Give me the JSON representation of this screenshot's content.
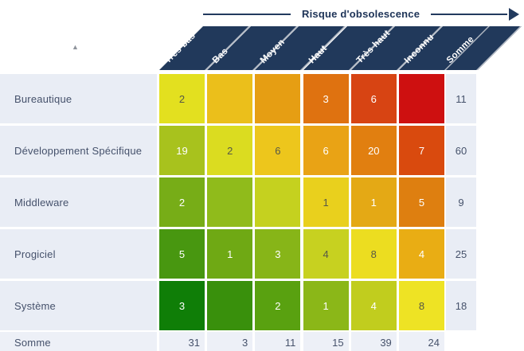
{
  "header": {
    "title": "Risque d'obsolescence"
  },
  "icons": {
    "sort_ascending": "▲",
    "arrow_right": "arrowhead-right"
  },
  "colors": {
    "header_navy": "#21395b",
    "title_navy": "#1d3357",
    "panel_lavender": "#e9edf5",
    "totals_row_bg": "#edf0f7",
    "label_text": "#45516b",
    "cell_dark_text": "#565847",
    "cell_light_text": "#ffffff"
  },
  "chart_data": {
    "type": "heatmap",
    "title": "Risque d'obsolescence",
    "columns": [
      "Très bas",
      "Bas",
      "Moyen",
      "Haut",
      "Très haut",
      "Inconnu"
    ],
    "somme_column_label": "Somme",
    "rows": [
      {
        "label": "Bureautique",
        "somme": "11",
        "cells": [
          {
            "value": "2",
            "bg": "#e3e01f",
            "fg": "#565847"
          },
          {
            "value": "",
            "bg": "#ebbf1b",
            "fg": "#565847"
          },
          {
            "value": "",
            "bg": "#e69e13",
            "fg": "#ffffff"
          },
          {
            "value": "3",
            "bg": "#df7210",
            "fg": "#ffffff"
          },
          {
            "value": "6",
            "bg": "#d74413",
            "fg": "#ffffff"
          },
          {
            "value": "",
            "bg": "#ce1010",
            "fg": "#ffffff"
          }
        ]
      },
      {
        "label": "Développement Spécifique",
        "somme": "60",
        "cells": [
          {
            "value": "19",
            "bg": "#a8c21d",
            "fg": "#ffffff"
          },
          {
            "value": "2",
            "bg": "#dbdc20",
            "fg": "#565847"
          },
          {
            "value": "6",
            "bg": "#edc61c",
            "fg": "#565847"
          },
          {
            "value": "6",
            "bg": "#e9a315",
            "fg": "#ffffff"
          },
          {
            "value": "20",
            "bg": "#e17f10",
            "fg": "#ffffff"
          },
          {
            "value": "7",
            "bg": "#d94a0e",
            "fg": "#ffffff"
          }
        ]
      },
      {
        "label": "Middleware",
        "somme": "9",
        "cells": [
          {
            "value": "2",
            "bg": "#77ad17",
            "fg": "#ffffff"
          },
          {
            "value": "",
            "bg": "#90bb1b",
            "fg": "#565847"
          },
          {
            "value": "",
            "bg": "#c5d11f",
            "fg": "#565847"
          },
          {
            "value": "1",
            "bg": "#e9d01d",
            "fg": "#565847"
          },
          {
            "value": "1",
            "bg": "#e4a915",
            "fg": "#ffffff"
          },
          {
            "value": "5",
            "bg": "#de7f10",
            "fg": "#ffffff"
          }
        ]
      },
      {
        "label": "Progiciel",
        "somme": "25",
        "cells": [
          {
            "value": "5",
            "bg": "#489710",
            "fg": "#ffffff"
          },
          {
            "value": "1",
            "bg": "#6fa914",
            "fg": "#ffffff"
          },
          {
            "value": "3",
            "bg": "#87b518",
            "fg": "#ffffff"
          },
          {
            "value": "4",
            "bg": "#c7d120",
            "fg": "#565847"
          },
          {
            "value": "8",
            "bg": "#ecdd20",
            "fg": "#565847"
          },
          {
            "value": "4",
            "bg": "#e9ad14",
            "fg": "#ffffff"
          }
        ]
      },
      {
        "label": "Système",
        "somme": "18",
        "cells": [
          {
            "value": "3",
            "bg": "#0f7e07",
            "fg": "#ffffff"
          },
          {
            "value": "",
            "bg": "#39900c",
            "fg": "#ffffff"
          },
          {
            "value": "2",
            "bg": "#59a110",
            "fg": "#ffffff"
          },
          {
            "value": "1",
            "bg": "#8bb718",
            "fg": "#ffffff"
          },
          {
            "value": "4",
            "bg": "#c1cd1e",
            "fg": "#ffffff"
          },
          {
            "value": "8",
            "bg": "#eee324",
            "fg": "#565847"
          }
        ]
      }
    ],
    "totals_row": {
      "label": "Somme",
      "values": [
        "31",
        "3",
        "11",
        "15",
        "39",
        "24"
      ]
    }
  }
}
